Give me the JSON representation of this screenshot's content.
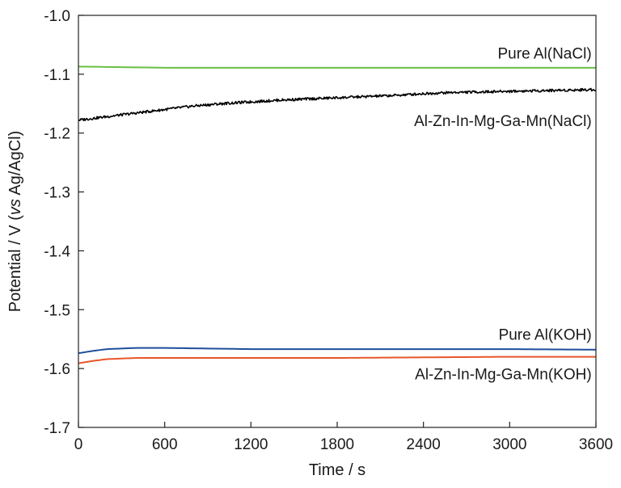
{
  "chart_data": {
    "type": "line",
    "title": "",
    "xlabel": "Time / s",
    "ylabel": {
      "prefix": "Potential / V (",
      "italic": "vs",
      "suffix": " Ag/AgCl)"
    },
    "xlim": [
      0,
      3600
    ],
    "ylim": [
      -1.7,
      -1.0
    ],
    "x_ticks": [
      0,
      600,
      1200,
      1800,
      2400,
      3000,
      3600
    ],
    "x_tick_labels": [
      "0",
      "600",
      "1200",
      "1800",
      "2400",
      "3000",
      "3600"
    ],
    "y_ticks": [
      -1.0,
      -1.1,
      -1.2,
      -1.3,
      -1.4,
      -1.5,
      -1.6,
      -1.7
    ],
    "y_tick_labels": [
      "-1.0",
      "-1.1",
      "-1.2",
      "-1.3",
      "-1.4",
      "-1.5",
      "-1.6",
      "-1.7"
    ],
    "grid": false,
    "legend": "none",
    "series": [
      {
        "name": "Pure Al(NaCl)",
        "color": "#6abf45",
        "x": [
          0,
          300,
          600,
          1200,
          1800,
          2400,
          3000,
          3600
        ],
        "y": [
          -1.087,
          -1.088,
          -1.089,
          -1.089,
          -1.089,
          -1.089,
          -1.089,
          -1.089
        ]
      },
      {
        "name": "Al-Zn-In-Mg-Ga-Mn(NaCl)",
        "color": "#000000",
        "x": [
          0,
          200,
          400,
          600,
          800,
          1000,
          1200,
          1400,
          1600,
          1800,
          2000,
          2200,
          2400,
          2600,
          2800,
          3000,
          3200,
          3400,
          3600
        ],
        "y": [
          -1.178,
          -1.172,
          -1.166,
          -1.16,
          -1.154,
          -1.15,
          -1.147,
          -1.144,
          -1.142,
          -1.14,
          -1.138,
          -1.136,
          -1.133,
          -1.131,
          -1.13,
          -1.129,
          -1.128,
          -1.127,
          -1.126
        ]
      },
      {
        "name": "Pure Al(KOH)",
        "color": "#1f4e9c",
        "x": [
          0,
          100,
          200,
          300,
          400,
          500,
          600,
          900,
          1200,
          1800,
          2400,
          3000,
          3600
        ],
        "y": [
          -1.574,
          -1.57,
          -1.567,
          -1.566,
          -1.565,
          -1.565,
          -1.565,
          -1.566,
          -1.567,
          -1.567,
          -1.567,
          -1.567,
          -1.568
        ]
      },
      {
        "name": "Al-Zn-In-Mg-Ga-Mn(KOH)",
        "color": "#e8562a",
        "x": [
          0,
          100,
          200,
          300,
          400,
          600,
          900,
          1200,
          1800,
          2400,
          3000,
          3600
        ],
        "y": [
          -1.591,
          -1.587,
          -1.584,
          -1.583,
          -1.582,
          -1.582,
          -1.582,
          -1.582,
          -1.582,
          -1.581,
          -1.58,
          -1.58
        ]
      }
    ],
    "annotations": [
      {
        "text": "Pure Al(NaCl)",
        "x": 3570,
        "y": -1.065
      },
      {
        "text": "Al-Zn-In-Mg-Ga-Mn(NaCl)",
        "x": 3570,
        "y": -1.18
      },
      {
        "text": "Pure Al(KOH)",
        "x": 3570,
        "y": -1.543
      },
      {
        "text": "Al-Zn-In-Mg-Ga-Mn(KOH)",
        "x": 3570,
        "y": -1.61
      }
    ]
  }
}
